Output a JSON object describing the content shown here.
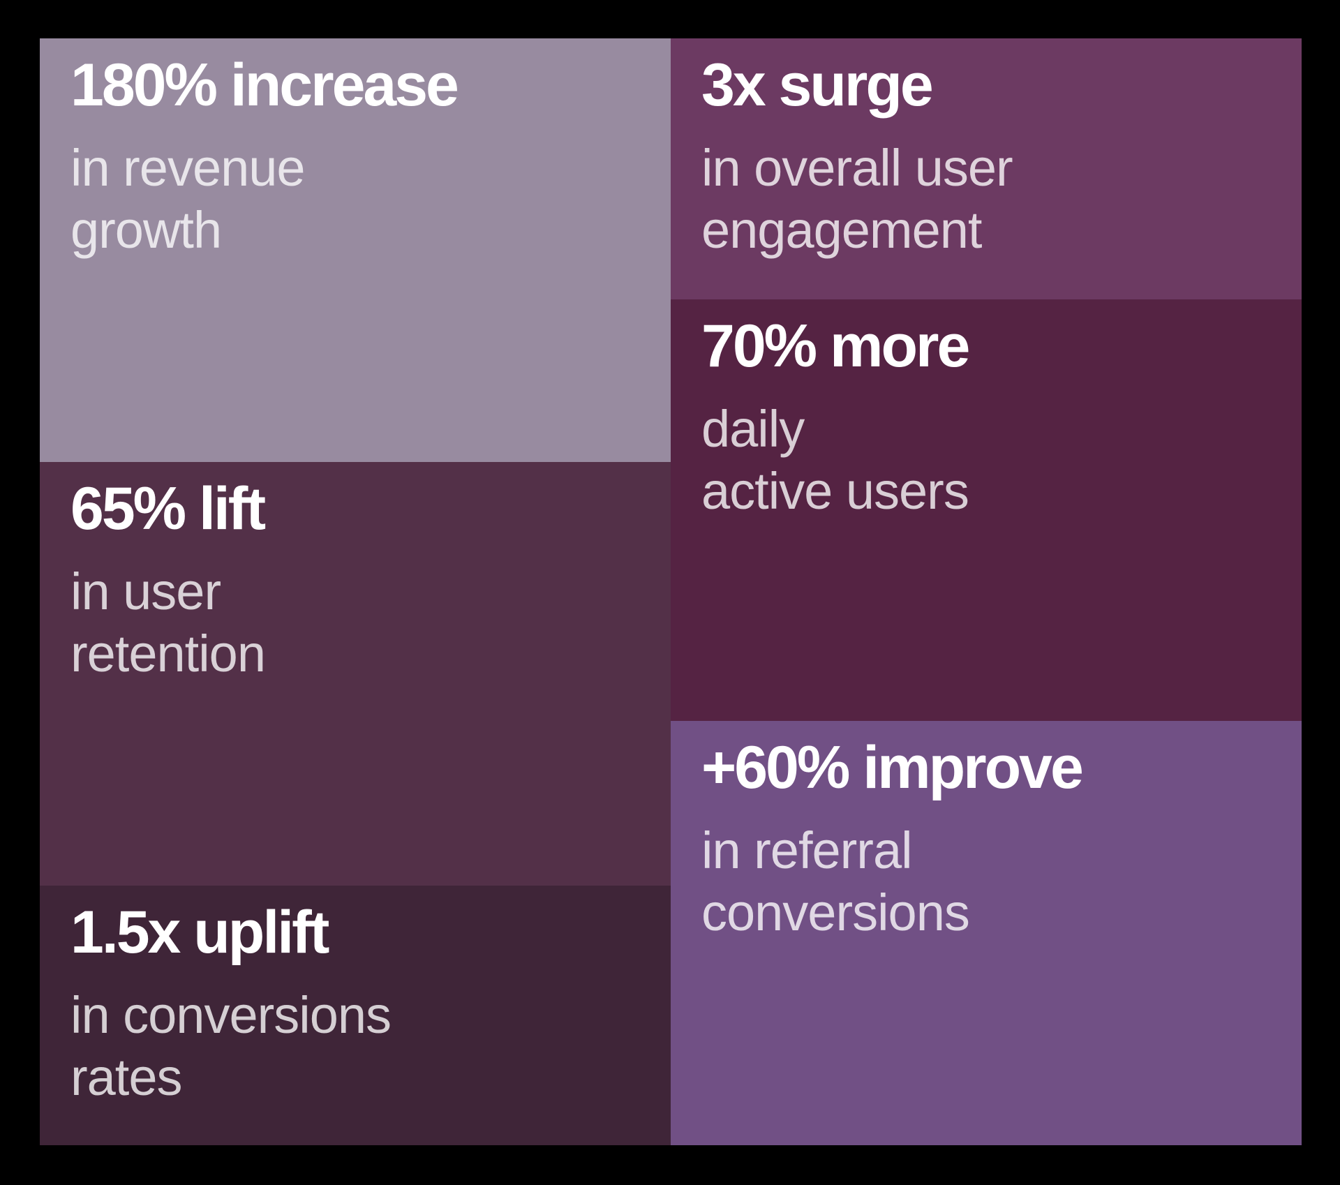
{
  "background_color": "#000000",
  "heading_color": "#FFFFFF",
  "subtitle_color": "rgba(255,255,255,0.78)",
  "tiles": [
    {
      "id": "revenue-growth",
      "value": "180% increase",
      "label_lines": [
        "in revenue",
        "growth"
      ],
      "bg": "#988BA0"
    },
    {
      "id": "user-retention",
      "value": "65% lift",
      "label_lines": [
        "in user",
        "retention"
      ],
      "bg": "#533048"
    },
    {
      "id": "conversion-rates",
      "value": "1.5x uplift",
      "label_lines": [
        "in conversions",
        "rates"
      ],
      "bg": "#3F2538"
    },
    {
      "id": "user-engagement",
      "value": "3x surge",
      "label_lines": [
        "in overall user",
        "engagement"
      ],
      "bg": "#6C3A62"
    },
    {
      "id": "daily-active-users",
      "value": "70% more",
      "label_lines": [
        "daily",
        "active users"
      ],
      "bg": "#552343"
    },
    {
      "id": "referral-conversions",
      "value": "+60% improve",
      "label_lines": [
        "in referral",
        "conversions"
      ],
      "bg": "#715085"
    }
  ]
}
